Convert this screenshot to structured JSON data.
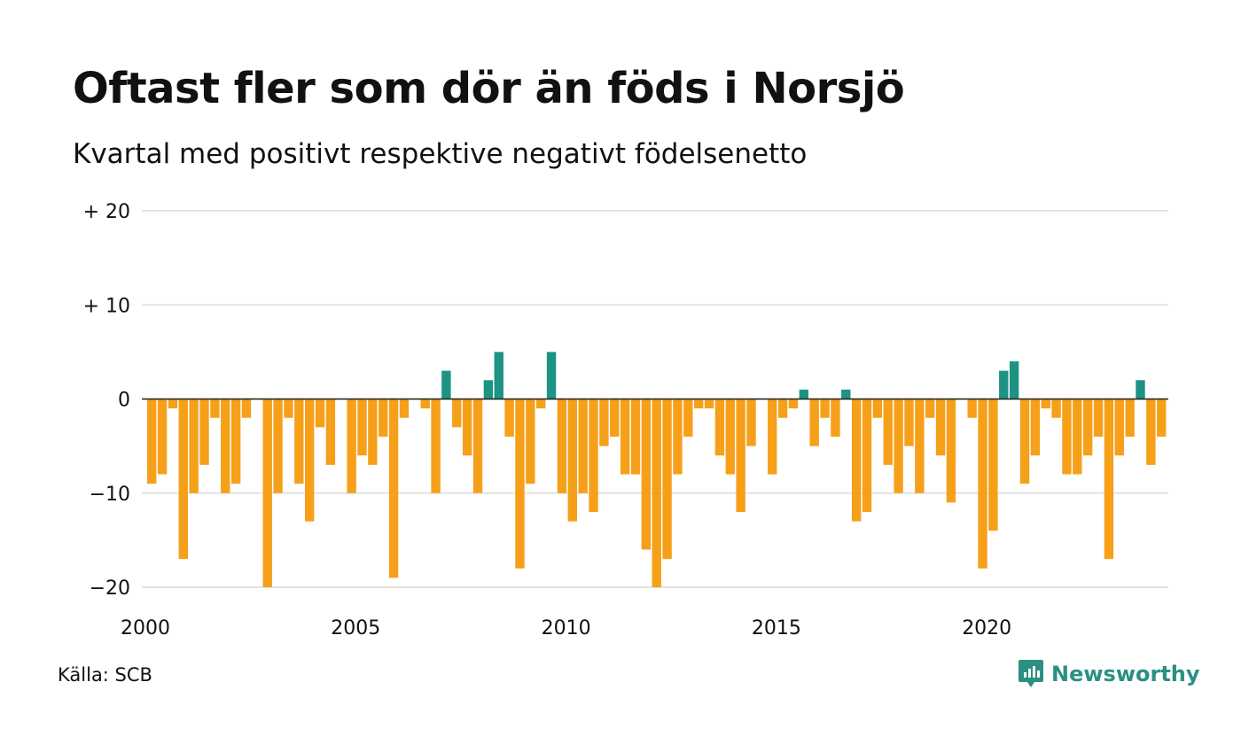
{
  "chart_data": {
    "type": "bar",
    "title": "Oftast fler som dör än föds i Norsjö",
    "subtitle": "Kvartal med positivt respektive negativt födelsenetto",
    "x_start": "2000 Q1",
    "x_ticks": [
      "2000",
      "2005",
      "2010",
      "2015",
      "2020"
    ],
    "y_ticks": [
      "+ 20",
      "+ 10",
      "0",
      "−10",
      "−20"
    ],
    "y_tick_values": [
      20,
      10,
      0,
      -10,
      -20
    ],
    "ylim": [
      -20,
      20
    ],
    "grid": true,
    "values": [
      -9,
      -8,
      -1,
      -17,
      -10,
      -7,
      -2,
      -10,
      -9,
      -2,
      0,
      -20,
      -10,
      -2,
      -9,
      -13,
      -3,
      -7,
      0,
      -10,
      -6,
      -7,
      -4,
      -19,
      -2,
      0,
      -1,
      -10,
      3,
      -3,
      -6,
      -10,
      2,
      5,
      -4,
      -18,
      -9,
      -1,
      5,
      -10,
      -13,
      -10,
      -12,
      -5,
      -4,
      -8,
      -8,
      -16,
      -20,
      -17,
      -8,
      -4,
      -1,
      -1,
      -6,
      -8,
      -12,
      -5,
      0,
      -8,
      -2,
      -1,
      1,
      -5,
      -2,
      -4,
      1,
      -13,
      -12,
      -2,
      -7,
      -10,
      -5,
      -10,
      -2,
      -6,
      -11,
      0,
      -2,
      -18,
      -14,
      3,
      4,
      -9,
      -6,
      -1,
      -2,
      -8,
      -8,
      -6,
      -4,
      -17,
      -6,
      -4,
      2,
      -7,
      -4
    ],
    "colors": {
      "positive": "#1d9384",
      "negative": "#f6a01a"
    }
  },
  "footer": {
    "source": "Källa: SCB",
    "brand": "Newsworthy"
  }
}
